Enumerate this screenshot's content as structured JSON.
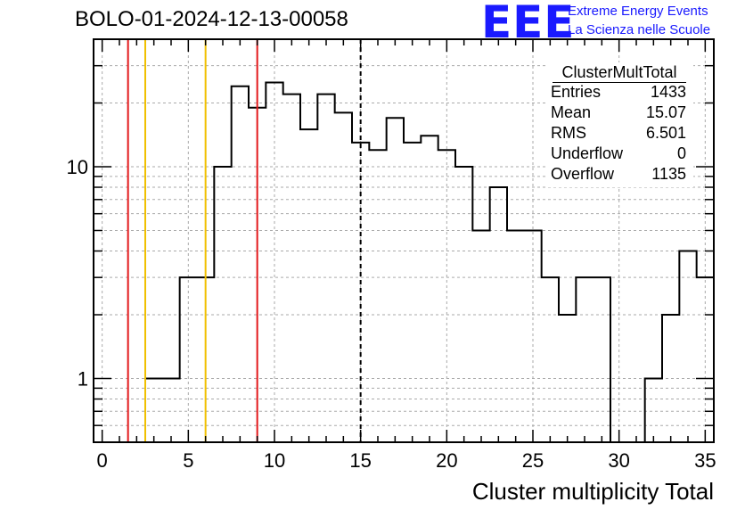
{
  "header": {
    "title": "BOLO-01-2024-12-13-00058",
    "logo_text": "EEE",
    "logo_line1": "Extreme Energy Events",
    "logo_line2": "La Scienza nelle Scuole"
  },
  "stats_box": {
    "title": "ClusterMultTotal",
    "rows": [
      {
        "key": "Entries",
        "value": "1433"
      },
      {
        "key": "Mean",
        "value": "15.07"
      },
      {
        "key": "RMS",
        "value": "6.501"
      },
      {
        "key": "Underflow",
        "value": "0"
      },
      {
        "key": "Overflow",
        "value": "1135"
      }
    ]
  },
  "colors": {
    "histogram": "#000000",
    "red_line": "#e31a1c",
    "yellow_line": "#f0c000",
    "mean_line": "#000000",
    "grid": "#aaaaaa",
    "logo": "#1a1aff"
  },
  "chart_data": {
    "type": "histogram",
    "title": "BOLO-01-2024-12-13-00058",
    "xlabel": "Cluster multiplicity Total",
    "ylabel": "",
    "log_y": true,
    "xlim": [
      -0.5,
      35.5
    ],
    "ylim": [
      0.5,
      40
    ],
    "grid": true,
    "bin_edges_start": -0.5,
    "bin_width": 1,
    "counts": [
      0,
      0,
      0,
      1,
      1,
      3,
      3,
      10,
      24,
      19,
      25,
      22,
      15,
      22,
      18,
      13,
      12,
      17,
      13,
      14,
      12,
      10,
      5,
      8,
      5,
      5,
      3,
      2,
      3,
      3,
      0,
      0,
      1,
      2,
      4,
      3
    ],
    "x_ticks": [
      0,
      5,
      10,
      15,
      20,
      25,
      30,
      35
    ],
    "x_tick_labels": [
      "0",
      "5",
      "10",
      "15",
      "20",
      "25",
      "30",
      "35"
    ],
    "y_ticks": [
      1,
      10
    ],
    "y_tick_labels": [
      "1",
      "10"
    ],
    "vertical_lines": [
      {
        "x": 1.5,
        "color": "red"
      },
      {
        "x": 2.5,
        "color": "yellow"
      },
      {
        "x": 6.0,
        "color": "yellow"
      },
      {
        "x": 9.0,
        "color": "red"
      },
      {
        "x": 15.0,
        "color": "black",
        "style": "dashed"
      }
    ]
  }
}
